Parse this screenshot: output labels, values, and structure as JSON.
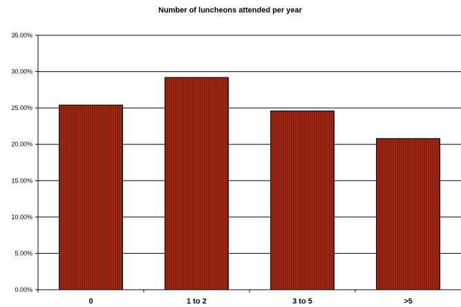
{
  "chart_data": {
    "type": "bar",
    "title": "Number of luncheons attended per year",
    "xlabel": "",
    "ylabel": "",
    "categories": [
      "0",
      "1 to 2",
      "3 to 5",
      ">5"
    ],
    "values": [
      25.4,
      29.2,
      24.6,
      20.8
    ],
    "ylim": [
      0,
      35
    ],
    "yticks": [
      "0.00%",
      "5.00%",
      "10.00%",
      "15.00%",
      "20.00%",
      "25.00%",
      "30.00%",
      "35.00%"
    ],
    "grid": true,
    "legend": "none",
    "bar_color": "#8b1a0b",
    "bar_stroke": "#000000"
  }
}
